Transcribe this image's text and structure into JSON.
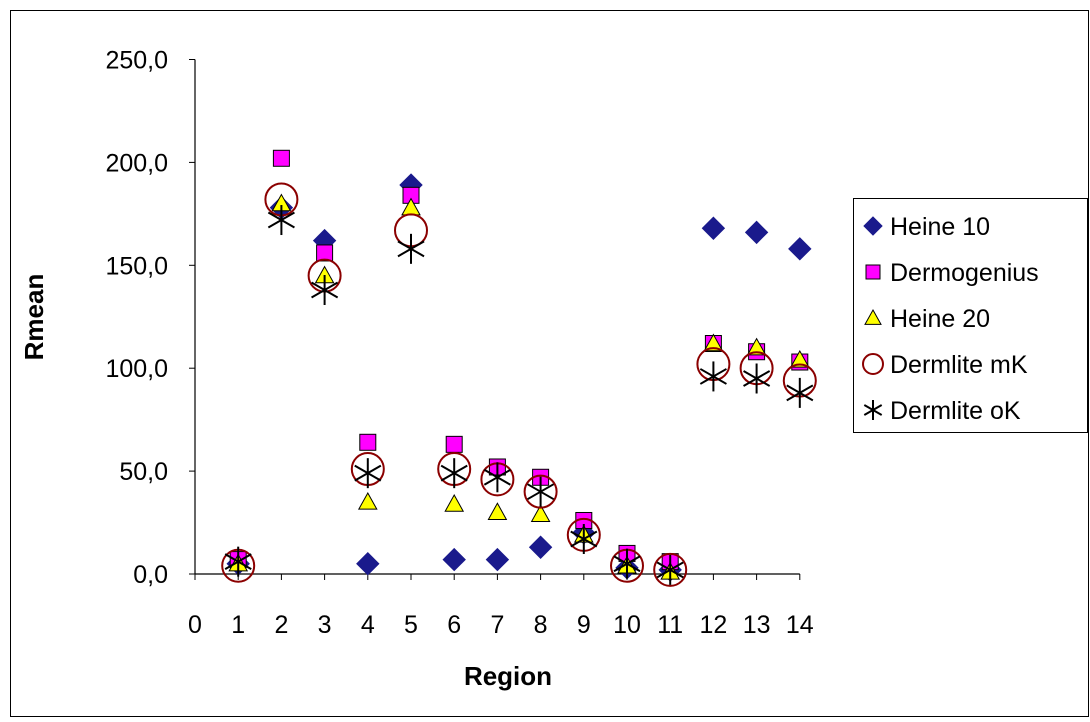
{
  "chart_data": {
    "type": "scatter",
    "title": "",
    "xlabel": "Region",
    "ylabel": "Rmean",
    "xlim": [
      0,
      14
    ],
    "ylim": [
      0,
      250
    ],
    "x_ticks": [
      "0",
      "1",
      "2",
      "3",
      "4",
      "5",
      "6",
      "7",
      "8",
      "9",
      "10",
      "11",
      "12",
      "13",
      "14"
    ],
    "y_ticks": [
      "0,0",
      "50,0",
      "100,0",
      "150,0",
      "200,0",
      "250,0"
    ],
    "grid": false,
    "legend_position": "right",
    "series": [
      {
        "name": "Heine 10",
        "marker": "diamond",
        "color": "#1a1a8c",
        "points": [
          [
            1,
            5
          ],
          [
            2,
            178
          ],
          [
            3,
            162
          ],
          [
            4,
            5
          ],
          [
            5,
            189
          ],
          [
            6,
            7
          ],
          [
            7,
            7
          ],
          [
            8,
            13
          ],
          [
            9,
            20
          ],
          [
            10,
            3
          ],
          [
            11,
            2
          ],
          [
            12,
            168
          ],
          [
            13,
            166
          ],
          [
            14,
            158
          ]
        ]
      },
      {
        "name": "Dermogenius",
        "marker": "square",
        "color": "#ff00ff",
        "points": [
          [
            1,
            7
          ],
          [
            2,
            202
          ],
          [
            3,
            156
          ],
          [
            4,
            64
          ],
          [
            5,
            184
          ],
          [
            6,
            63
          ],
          [
            7,
            52
          ],
          [
            8,
            47
          ],
          [
            9,
            26
          ],
          [
            10,
            10
          ],
          [
            11,
            6
          ],
          [
            12,
            112
          ],
          [
            13,
            108
          ],
          [
            14,
            103
          ]
        ]
      },
      {
        "name": "Heine 20",
        "marker": "triangle",
        "color": "#ffff00",
        "points": [
          [
            1,
            5
          ],
          [
            2,
            180
          ],
          [
            3,
            145
          ],
          [
            4,
            35
          ],
          [
            5,
            178
          ],
          [
            6,
            34
          ],
          [
            7,
            30
          ],
          [
            8,
            29
          ],
          [
            9,
            19
          ],
          [
            10,
            4
          ],
          [
            11,
            1
          ],
          [
            12,
            112
          ],
          [
            13,
            110
          ],
          [
            14,
            104
          ]
        ]
      },
      {
        "name": "Dermlite mK",
        "marker": "circle",
        "color": "#8b0000",
        "points": [
          [
            1,
            4
          ],
          [
            2,
            182
          ],
          [
            3,
            145
          ],
          [
            4,
            51
          ],
          [
            5,
            167
          ],
          [
            6,
            51
          ],
          [
            7,
            46
          ],
          [
            8,
            40
          ],
          [
            9,
            19
          ],
          [
            10,
            4
          ],
          [
            11,
            2
          ],
          [
            12,
            102
          ],
          [
            13,
            100
          ],
          [
            14,
            94
          ]
        ]
      },
      {
        "name": "Dermlite oK",
        "marker": "star",
        "color": "#000000",
        "points": [
          [
            1,
            6
          ],
          [
            2,
            172
          ],
          [
            3,
            138
          ],
          [
            4,
            49
          ],
          [
            5,
            158
          ],
          [
            6,
            49
          ],
          [
            7,
            47
          ],
          [
            8,
            40
          ],
          [
            9,
            17
          ],
          [
            10,
            5
          ],
          [
            11,
            2
          ],
          [
            12,
            96
          ],
          [
            13,
            95
          ],
          [
            14,
            88
          ]
        ]
      }
    ]
  }
}
